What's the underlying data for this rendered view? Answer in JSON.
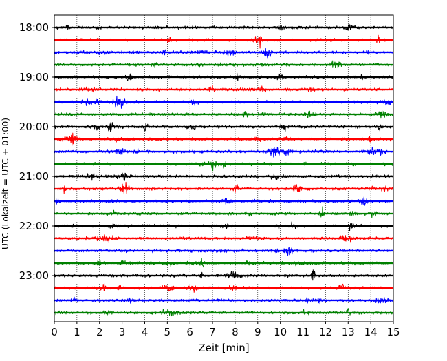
{
  "chart_data": {
    "type": "line",
    "title": "",
    "xlabel": "Zeit  [min]",
    "ylabel": "UTC (Lokalzeit = UTC + 01:00)",
    "xlim": [
      0,
      15
    ],
    "x_ticks": [
      "0",
      "1",
      "2",
      "3",
      "4",
      "5",
      "6",
      "7",
      "8",
      "9",
      "10",
      "11",
      "12",
      "13",
      "14",
      "15"
    ],
    "y_tick_labels": [
      "18:00",
      "19:00",
      "20:00",
      "21:00",
      "22:00",
      "23:00"
    ],
    "grid": {
      "x": true,
      "y": false,
      "style": "dotted"
    },
    "legend": "none",
    "trace_interval_minutes": 15,
    "color_cycle": [
      "#000000",
      "#ff0000",
      "#0000ff",
      "#008000"
    ],
    "traces": [
      "18:00",
      "18:15",
      "18:30",
      "18:45",
      "19:00",
      "19:15",
      "19:30",
      "19:45",
      "20:00",
      "20:15",
      "20:30",
      "20:45",
      "21:00",
      "21:15",
      "21:30",
      "21:45",
      "22:00",
      "22:15",
      "22:30",
      "22:45",
      "23:00",
      "23:15",
      "23:30",
      "23:45"
    ]
  }
}
